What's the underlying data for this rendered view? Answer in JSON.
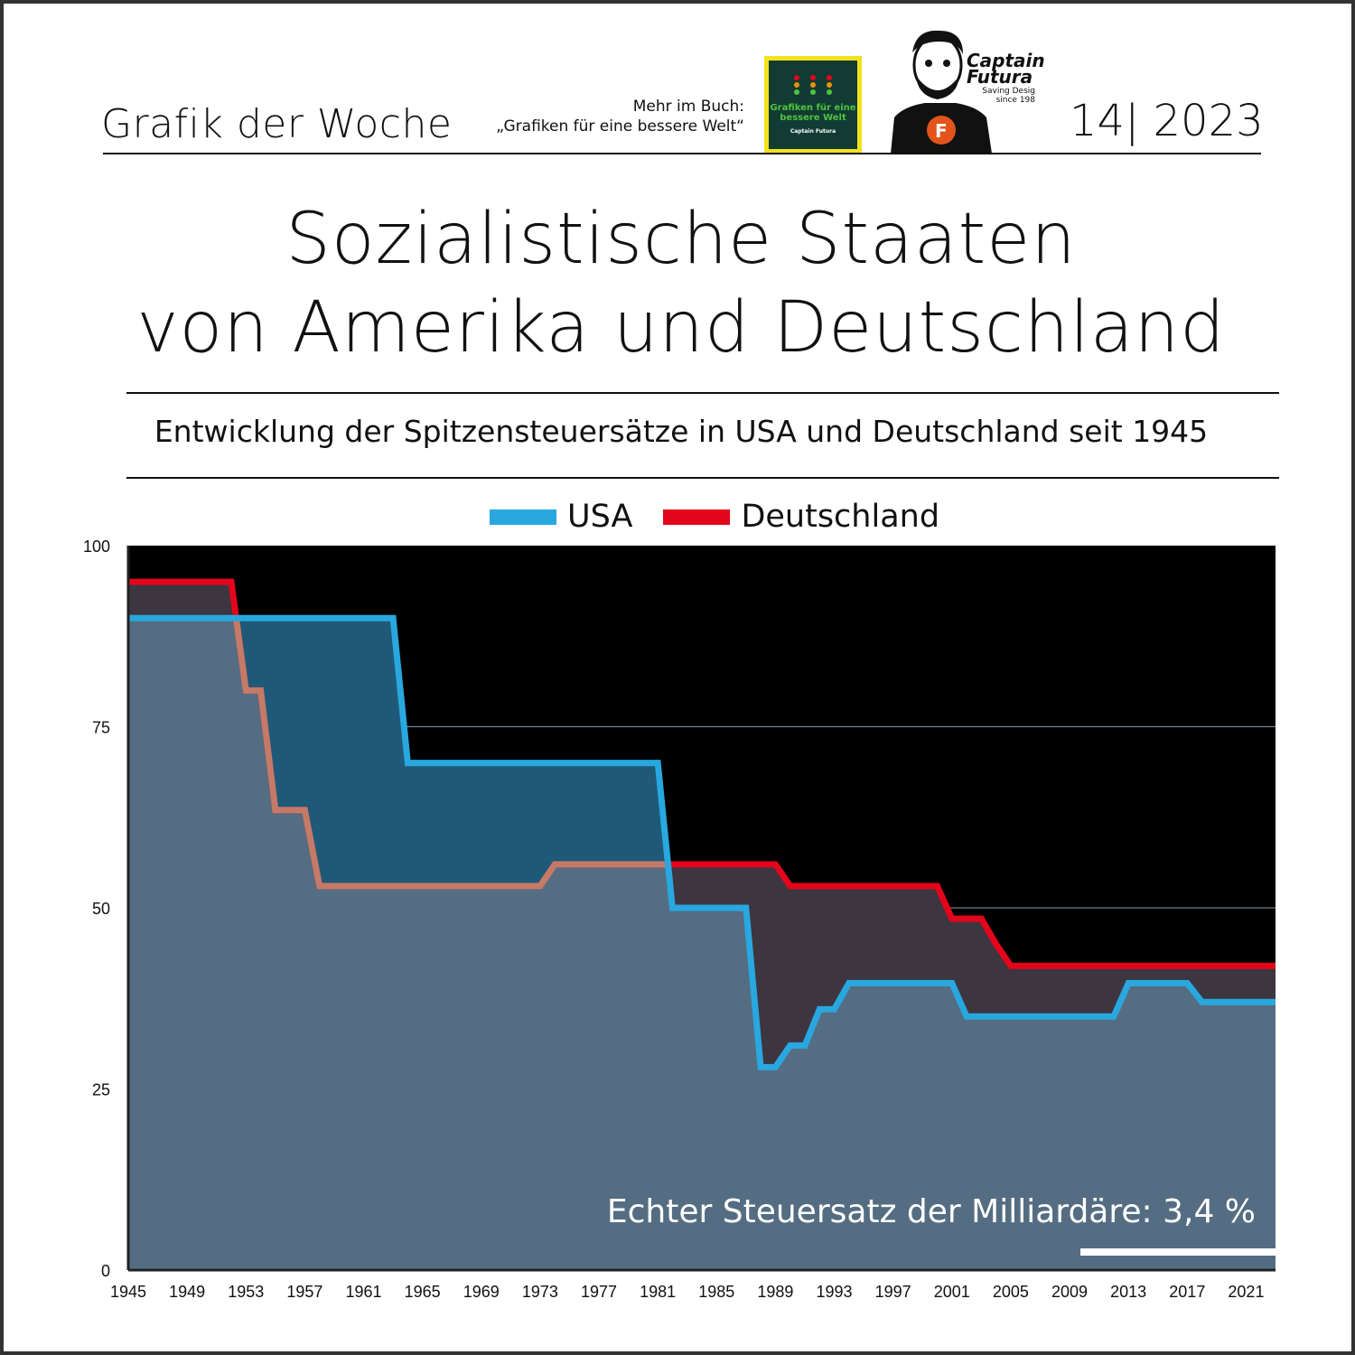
{
  "header": {
    "left": "Grafik der Woche",
    "issue": "14| 2023",
    "promo_line1": "Mehr im Buch:",
    "promo_line2": "„Grafiken für eine bessere Welt“",
    "book_title": "Grafiken für eine bessere Welt",
    "book_author": "Captain Futura",
    "brand_name": "Captain Futura",
    "brand_tagline": "Saving Desig since 198"
  },
  "title_line1": "Sozialistische Staaten",
  "title_line2": "von Amerika und Deutschland",
  "subtitle": "Entwicklung der Spitzensteuersätze in USA und Deutschland seit 1945",
  "annotation": "Echter Steuersatz der Milliardäre: 3,4 %",
  "colors": {
    "usa": "#29a7df",
    "germany": "#e3051b",
    "background": "#000000"
  },
  "chart_data": {
    "type": "line",
    "title": "",
    "xlabel": "",
    "ylabel": "",
    "xlim": [
      1945,
      2023
    ],
    "ylim": [
      0,
      100
    ],
    "y_ticks": [
      0,
      25,
      50,
      75,
      100
    ],
    "x_ticks": [
      1945,
      1949,
      1953,
      1957,
      1961,
      1965,
      1969,
      1973,
      1977,
      1981,
      1985,
      1989,
      1993,
      1997,
      2001,
      2005,
      2009,
      2013,
      2017,
      2021
    ],
    "grid": true,
    "legend": "top-center",
    "series": [
      {
        "name": "USA",
        "points": [
          [
            1945,
            90
          ],
          [
            1963,
            90
          ],
          [
            1964,
            70
          ],
          [
            1981,
            70
          ],
          [
            1982,
            50
          ],
          [
            1987,
            50
          ],
          [
            1988,
            28
          ],
          [
            1989,
            28
          ],
          [
            1990,
            31
          ],
          [
            1991,
            31
          ],
          [
            1992,
            36
          ],
          [
            1993,
            36
          ],
          [
            1994,
            39.6
          ],
          [
            2001,
            39.6
          ],
          [
            2002,
            35
          ],
          [
            2012,
            35
          ],
          [
            2013,
            39.6
          ],
          [
            2017,
            39.6
          ],
          [
            2018,
            37
          ],
          [
            2023,
            37
          ]
        ]
      },
      {
        "name": "Deutschland",
        "points": [
          [
            1945,
            95
          ],
          [
            1952,
            95
          ],
          [
            1953,
            80
          ],
          [
            1954,
            80
          ],
          [
            1955,
            63.5
          ],
          [
            1957,
            63.5
          ],
          [
            1958,
            53
          ],
          [
            1973,
            53
          ],
          [
            1974,
            56
          ],
          [
            1989,
            56
          ],
          [
            1990,
            53
          ],
          [
            2000,
            53
          ],
          [
            2001,
            48.5
          ],
          [
            2003,
            48.5
          ],
          [
            2004,
            45
          ],
          [
            2005,
            42
          ],
          [
            2023,
            42
          ]
        ]
      }
    ]
  }
}
